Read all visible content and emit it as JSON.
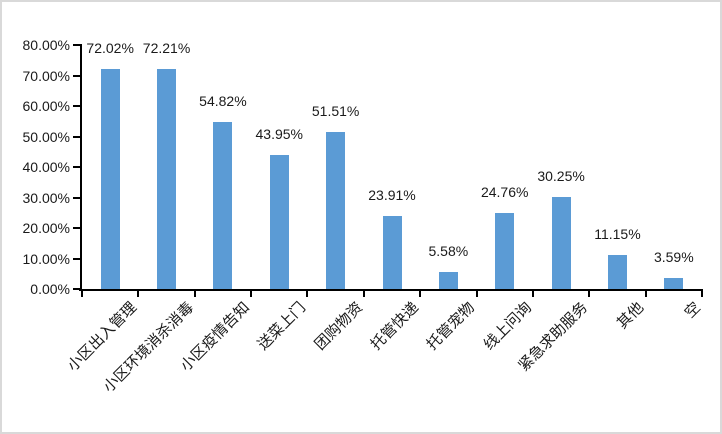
{
  "chart_data": {
    "type": "bar",
    "title": "",
    "xlabel": "",
    "ylabel": "",
    "categories": [
      "小区出入管理",
      "小区环境消杀消毒",
      "小区疫情告知",
      "送菜上门",
      "团购物资",
      "托管快递",
      "托管宠物",
      "线上问询",
      "紧急求助服务",
      "其他",
      "空"
    ],
    "values": [
      72.02,
      72.21,
      54.82,
      43.95,
      51.51,
      23.91,
      5.58,
      24.76,
      30.25,
      11.15,
      3.59
    ],
    "data_labels": [
      "72.02%",
      "72.21%",
      "54.82%",
      "43.95%",
      "51.51%",
      "23.91%",
      "5.58%",
      "24.76%",
      "30.25%",
      "11.15%",
      "3.59%"
    ],
    "y_tick_labels": [
      "0.00%",
      "10.00%",
      "20.00%",
      "30.00%",
      "40.00%",
      "50.00%",
      "60.00%",
      "70.00%",
      "80.00%"
    ],
    "ylim": [
      0,
      80
    ],
    "y_major_step": 10,
    "grid": false,
    "legend_position": "none",
    "category_label_rotation_deg": 45,
    "colors": {
      "bar": "#5B9BD5",
      "axis": "#000000",
      "text": "#1A1A1A",
      "frame_border": "#D9D9D9",
      "background": "#FFFFFF"
    }
  }
}
